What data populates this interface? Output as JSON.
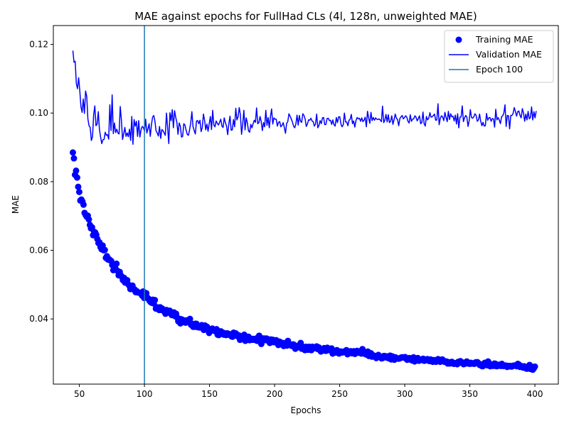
{
  "chart_data": {
    "type": "line",
    "title": "MAE against epochs for FullHad CLs (4l, 128n, unweighted MAE)",
    "xlabel": "Epochs",
    "ylabel": "MAE",
    "xlim": [
      30,
      418
    ],
    "ylim": [
      0.021,
      0.1255
    ],
    "x_ticks": [
      50,
      100,
      150,
      200,
      250,
      300,
      350,
      400
    ],
    "x_tick_labels": [
      "50",
      "100",
      "150",
      "200",
      "250",
      "300",
      "350",
      "400"
    ],
    "y_ticks": [
      0.04,
      0.06,
      0.08,
      0.1,
      0.12
    ],
    "y_tick_labels": [
      "0.04",
      "0.06",
      "0.08",
      "0.10",
      "0.12"
    ],
    "grid": false,
    "legend_position": "top-right",
    "series": [
      {
        "name": "Training MAE",
        "kind": "scatter",
        "color": "#0000ff",
        "x_start": 45,
        "x_end": 400,
        "values": [
          0.0885,
          0.0868,
          0.082,
          0.0832,
          0.0812,
          0.0785,
          0.077,
          0.0745,
          0.0748,
          0.0742,
          0.0733,
          0.0709,
          0.0703,
          0.0698,
          0.0701,
          0.069,
          0.0674,
          0.0664,
          0.0667,
          0.0644,
          0.0654,
          0.0652,
          0.0645,
          0.0633,
          0.0621,
          0.0623,
          0.0609,
          0.0603,
          0.0614,
          0.06,
          0.0601,
          0.0578,
          0.0583,
          0.0573,
          0.0574,
          0.0571,
          0.0569,
          0.0557,
          0.0542,
          0.0555,
          0.0547,
          0.0561,
          0.054,
          0.0527,
          0.0537,
          0.0527,
          0.0523,
          0.0513,
          0.052,
          0.0506,
          0.0509,
          0.0513,
          0.0501,
          0.0497,
          0.0487,
          0.0494,
          0.0497,
          0.0486,
          0.0486,
          0.0478,
          0.0481,
          0.0477,
          0.0477,
          0.0476,
          0.0475,
          0.0468,
          0.048,
          0.0461,
          0.0476,
          0.0475,
          0.0462,
          0.0459,
          0.0453,
          0.0449,
          0.0447,
          0.0456,
          0.0445,
          0.0455,
          0.043,
          0.0434,
          0.0433,
          0.0426,
          0.0434,
          0.0426,
          0.043,
          0.0425,
          0.0421,
          0.0415,
          0.0426,
          0.0421,
          0.0422,
          0.0424,
          0.0415,
          0.0411,
          0.0416,
          0.0419,
          0.0408,
          0.0415,
          0.0404,
          0.0393,
          0.04,
          0.0387,
          0.0399,
          0.0397,
          0.0396,
          0.039,
          0.0389,
          0.0396,
          0.0392,
          0.0395,
          0.04,
          0.0383,
          0.0386,
          0.0377,
          0.0377,
          0.0386,
          0.0386,
          0.0376,
          0.0378,
          0.0375,
          0.0376,
          0.0382,
          0.038,
          0.0368,
          0.0381,
          0.0376,
          0.0377,
          0.0367,
          0.0359,
          0.0367,
          0.0366,
          0.0372,
          0.0367,
          0.0365,
          0.0364,
          0.037,
          0.0354,
          0.0353,
          0.0355,
          0.0364,
          0.0361,
          0.036,
          0.0354,
          0.0358,
          0.0353,
          0.0358,
          0.0357,
          0.0354,
          0.0355,
          0.0349,
          0.0348,
          0.036,
          0.0352,
          0.0358,
          0.0352,
          0.0349,
          0.0352,
          0.0339,
          0.0349,
          0.0347,
          0.0344,
          0.0354,
          0.0336,
          0.0347,
          0.0344,
          0.0348,
          0.0338,
          0.0341,
          0.0342,
          0.0339,
          0.0342,
          0.034,
          0.0338,
          0.0336,
          0.0347,
          0.0351,
          0.0346,
          0.0327,
          0.0339,
          0.0343,
          0.0343,
          0.0338,
          0.0343,
          0.0341,
          0.0335,
          0.033,
          0.034,
          0.0339,
          0.0339,
          0.0332,
          0.0332,
          0.0338,
          0.0332,
          0.0324,
          0.0334,
          0.0332,
          0.0329,
          0.033,
          0.0321,
          0.0329,
          0.0324,
          0.0322,
          0.0336,
          0.0328,
          0.0325,
          0.0322,
          0.0321,
          0.0326,
          0.0324,
          0.0313,
          0.032,
          0.0317,
          0.0322,
          0.0321,
          0.033,
          0.0313,
          0.0313,
          0.0318,
          0.0309,
          0.0319,
          0.0312,
          0.031,
          0.0319,
          0.0317,
          0.0309,
          0.0319,
          0.0314,
          0.0316,
          0.0316,
          0.032,
          0.0312,
          0.0317,
          0.031,
          0.0305,
          0.031,
          0.0312,
          0.0315,
          0.0307,
          0.0307,
          0.0316,
          0.0309,
          0.0312,
          0.0311,
          0.0314,
          0.0299,
          0.0305,
          0.0304,
          0.0302,
          0.0309,
          0.0305,
          0.0299,
          0.0305,
          0.0305,
          0.0302,
          0.0303,
          0.0303,
          0.0307,
          0.0309,
          0.0297,
          0.0301,
          0.0302,
          0.0306,
          0.03,
          0.03,
          0.0306,
          0.0298,
          0.0302,
          0.0307,
          0.0303,
          0.0301,
          0.0303,
          0.0299,
          0.0312,
          0.03,
          0.0299,
          0.0297,
          0.0296,
          0.0305,
          0.0292,
          0.0296,
          0.03,
          0.029,
          0.0294,
          0.0291,
          0.0292,
          0.0286,
          0.0292,
          0.0295,
          0.0289,
          0.0289,
          0.0285,
          0.0286,
          0.0292,
          0.0292,
          0.0289,
          0.0287,
          0.0291,
          0.0285,
          0.0293,
          0.0282,
          0.0291,
          0.0289,
          0.0281,
          0.0288,
          0.0285,
          0.0285,
          0.0284,
          0.0285,
          0.0287,
          0.0288,
          0.0288,
          0.0287,
          0.0289,
          0.0285,
          0.0281,
          0.0284,
          0.0286,
          0.0285,
          0.028,
          0.0279,
          0.0288,
          0.0276,
          0.028,
          0.0285,
          0.0286,
          0.0278,
          0.028,
          0.028,
          0.0281,
          0.0284,
          0.0278,
          0.0279,
          0.0281,
          0.0283,
          0.0279,
          0.0277,
          0.0282,
          0.0277,
          0.0275,
          0.028,
          0.0279,
          0.0275,
          0.0277,
          0.0283,
          0.0281,
          0.0275,
          0.0277,
          0.0282,
          0.0279,
          0.0275,
          0.0275,
          0.0276,
          0.027,
          0.0274,
          0.027,
          0.0274,
          0.0275,
          0.027,
          0.0269,
          0.0271,
          0.0271,
          0.0268,
          0.0275,
          0.0272,
          0.0277,
          0.0274,
          0.0273,
          0.0268,
          0.0269,
          0.0271,
          0.0276,
          0.027,
          0.0272,
          0.0269,
          0.0272,
          0.027,
          0.027,
          0.0269,
          0.0273,
          0.0274,
          0.0274,
          0.0271,
          0.0266,
          0.0266,
          0.0263,
          0.0262,
          0.027,
          0.0272,
          0.027,
          0.0265,
          0.0276,
          0.0271,
          0.0262,
          0.0264,
          0.0266,
          0.0263,
          0.027,
          0.0269,
          0.0262,
          0.0263,
          0.0265,
          0.0267,
          0.0263,
          0.0269,
          0.0263,
          0.0263,
          0.0264,
          0.0264,
          0.026,
          0.0263,
          0.0262,
          0.0263,
          0.0261,
          0.0262,
          0.0264,
          0.0264,
          0.0265,
          0.0262,
          0.0269,
          0.0267,
          0.026,
          0.0261,
          0.0262,
          0.0258,
          0.0262,
          0.0259,
          0.0255,
          0.0255,
          0.0261,
          0.0266,
          0.0254,
          0.0261,
          0.0252,
          0.0256,
          0.0261
        ]
      },
      {
        "name": "Validation MAE",
        "kind": "line",
        "color": "#0000ff",
        "x_start": 45,
        "x_end": 401,
        "values": [
          0.1182,
          0.1148,
          0.1151,
          0.1086,
          0.1071,
          0.1103,
          0.1065,
          0.1018,
          0.1002,
          0.1041,
          0.0999,
          0.1064,
          0.1049,
          0.0983,
          0.0963,
          0.0958,
          0.092,
          0.0931,
          0.0995,
          0.1021,
          0.0963,
          0.0968,
          0.1004,
          0.0952,
          0.093,
          0.0911,
          0.0922,
          0.0923,
          0.0944,
          0.0935,
          0.0937,
          0.0924,
          0.1024,
          0.0949,
          0.1053,
          0.094,
          0.0971,
          0.0943,
          0.0953,
          0.0942,
          0.0939,
          0.1019,
          0.098,
          0.0923,
          0.0939,
          0.0958,
          0.0932,
          0.0942,
          0.0931,
          0.0953,
          0.092,
          0.099,
          0.0909,
          0.0981,
          0.0962,
          0.0976,
          0.0932,
          0.0978,
          0.093,
          0.0951,
          0.0961,
          0.0958,
          0.0947,
          0.0982,
          0.0942,
          0.0954,
          0.0969,
          0.0932,
          0.0966,
          0.0988,
          0.0993,
          0.0977,
          0.0948,
          0.0942,
          0.0933,
          0.0961,
          0.0926,
          0.0952,
          0.0949,
          0.0942,
          0.0935,
          0.1,
          0.0958,
          0.0911,
          0.1001,
          0.0978,
          0.101,
          0.0957,
          0.1007,
          0.0988,
          0.0973,
          0.0938,
          0.0971,
          0.0962,
          0.093,
          0.0932,
          0.0969,
          0.0965,
          0.095,
          0.0938,
          0.0935,
          0.0951,
          0.0971,
          0.1004,
          0.096,
          0.0949,
          0.0939,
          0.0977,
          0.0978,
          0.0969,
          0.0979,
          0.0946,
          0.0958,
          0.0997,
          0.0979,
          0.0951,
          0.0968,
          0.0947,
          0.0969,
          0.099,
          0.0952,
          0.1008,
          0.0965,
          0.096,
          0.0977,
          0.097,
          0.0965,
          0.0973,
          0.0982,
          0.0962,
          0.0958,
          0.0986,
          0.0972,
          0.0962,
          0.0937,
          0.0969,
          0.0991,
          0.095,
          0.0951,
          0.0981,
          0.096,
          0.1014,
          0.098,
          0.0989,
          0.1016,
          0.0994,
          0.0938,
          0.0968,
          0.1008,
          0.0951,
          0.0986,
          0.0972,
          0.0948,
          0.0944,
          0.0967,
          0.0957,
          0.0969,
          0.0979,
          0.0973,
          0.1015,
          0.0969,
          0.0972,
          0.099,
          0.0975,
          0.0949,
          0.0972,
          0.096,
          0.1008,
          0.0964,
          0.0987,
          0.0957,
          0.099,
          0.1012,
          0.0968,
          0.0986,
          0.0982,
          0.0982,
          0.0962,
          0.0973,
          0.0975,
          0.096,
          0.0964,
          0.0972,
          0.0958,
          0.0941,
          0.097,
          0.0975,
          0.0998,
          0.0991,
          0.0983,
          0.0974,
          0.0962,
          0.0957,
          0.0968,
          0.0994,
          0.0965,
          0.0993,
          0.0976,
          0.0973,
          0.0998,
          0.0993,
          0.0983,
          0.0961,
          0.0968,
          0.098,
          0.0979,
          0.0985,
          0.0977,
          0.0975,
          0.0962,
          0.0968,
          0.0997,
          0.0957,
          0.0964,
          0.0978,
          0.0969,
          0.0986,
          0.0987,
          0.0966,
          0.0967,
          0.0984,
          0.0985,
          0.0978,
          0.0979,
          0.0967,
          0.098,
          0.0966,
          0.0962,
          0.0987,
          0.0972,
          0.0989,
          0.0989,
          0.0968,
          0.096,
          0.0966,
          0.1,
          0.0974,
          0.0974,
          0.0963,
          0.0979,
          0.0982,
          0.0996,
          0.0969,
          0.0977,
          0.0959,
          0.0978,
          0.0987,
          0.0983,
          0.0985,
          0.0976,
          0.0986,
          0.0975,
          0.0979,
          0.0988,
          0.096,
          0.1005,
          0.0986,
          0.097,
          0.1002,
          0.0978,
          0.0987,
          0.0979,
          0.0986,
          0.0982,
          0.0981,
          0.0983,
          0.098,
          0.0975,
          0.102,
          0.0972,
          0.0979,
          0.0996,
          0.0974,
          0.0995,
          0.0972,
          0.0976,
          0.0992,
          0.0967,
          0.0981,
          0.0997,
          0.0985,
          0.0981,
          0.0963,
          0.0984,
          0.0989,
          0.0993,
          0.0983,
          0.0987,
          0.0992,
          0.0988,
          0.0976,
          0.0971,
          0.0995,
          0.0976,
          0.0982,
          0.0983,
          0.0992,
          0.0988,
          0.0977,
          0.0984,
          0.0992,
          0.0969,
          0.0972,
          0.1003,
          0.0969,
          0.0962,
          0.099,
          0.098,
          0.0985,
          0.1001,
          0.0988,
          0.0989,
          0.0993,
          0.0997,
          0.0979,
          0.098,
          0.1027,
          0.0966,
          0.0985,
          0.0992,
          0.0989,
          0.0978,
          0.1002,
          0.0987,
          0.0975,
          0.1005,
          0.0981,
          0.0998,
          0.0989,
          0.0991,
          0.0977,
          0.0994,
          0.0968,
          0.0998,
          0.0957,
          0.0988,
          0.0989,
          0.1021,
          0.0975,
          0.0986,
          0.0993,
          0.0988,
          0.0961,
          0.0978,
          0.101,
          0.0987,
          0.0985,
          0.0989,
          0.0998,
          0.0993,
          0.0976,
          0.098,
          0.0997,
          0.0976,
          0.0963,
          0.0973,
          0.0962,
          0.0963,
          0.0999,
          0.0979,
          0.0986,
          0.0987,
          0.0976,
          0.0984,
          0.0983,
          0.0959,
          0.1011,
          0.098,
          0.0987,
          0.098,
          0.0969,
          0.0989,
          0.0992,
          0.1,
          0.1024,
          0.0961,
          0.0993,
          0.0992,
          0.0954,
          0.0993,
          0.0993,
          0.0999,
          0.1016,
          0.1005,
          0.0991,
          0.1004,
          0.1006,
          0.0993,
          0.0986,
          0.1013,
          0.1,
          0.0976,
          0.0997,
          0.098,
          0.1005,
          0.0983,
          0.0987,
          0.1018,
          0.098,
          0.1004,
          0.0986,
          0.1006
        ]
      },
      {
        "name": "Epoch 100",
        "kind": "vline",
        "color": "#1f77b4",
        "x": 100
      }
    ]
  }
}
